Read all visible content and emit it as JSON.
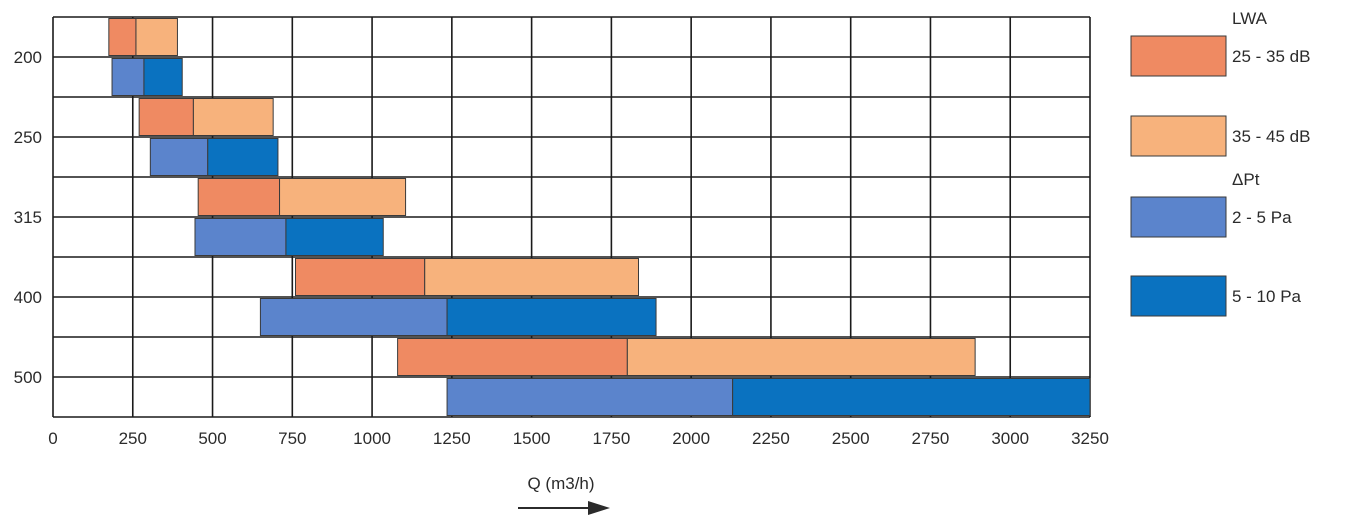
{
  "chart_data": {
    "type": "bar",
    "orientation": "horizontal-range",
    "xlabel": "Q (m3/h)",
    "xlim": [
      0,
      3250
    ],
    "x_ticks": [
      0,
      250,
      500,
      750,
      1000,
      1250,
      1500,
      1750,
      2000,
      2250,
      2500,
      2750,
      3000,
      3250
    ],
    "categories": [
      "200",
      "250",
      "315",
      "400",
      "500"
    ],
    "legend": {
      "placement": "right",
      "groups": [
        {
          "title": "LWA",
          "entries": [
            {
              "label": "25 - 35 dB",
              "color": "#ef8a62"
            },
            {
              "label": "35 - 45 dB",
              "color": "#f7b27c"
            }
          ]
        },
        {
          "title": "ΔPt",
          "entries": [
            {
              "label": "2 - 5 Pa",
              "color": "#5b84cc"
            },
            {
              "label": "5 - 10 Pa",
              "color": "#0a72c0"
            }
          ]
        }
      ]
    },
    "series": [
      {
        "name": "25 - 35 dB",
        "group": "LWA",
        "color": "#ef8a62",
        "ranges": [
          [
            175,
            260
          ],
          [
            270,
            440
          ],
          [
            455,
            710
          ],
          [
            760,
            1165
          ],
          [
            1080,
            1800
          ]
        ]
      },
      {
        "name": "35 - 45 dB",
        "group": "LWA",
        "color": "#f7b27c",
        "ranges": [
          [
            260,
            390
          ],
          [
            440,
            690
          ],
          [
            710,
            1105
          ],
          [
            1165,
            1835
          ],
          [
            1800,
            2890
          ]
        ]
      },
      {
        "name": "2 - 5 Pa",
        "group": "ΔPt",
        "color": "#5b84cc",
        "ranges": [
          [
            185,
            285
          ],
          [
            305,
            485
          ],
          [
            445,
            730
          ],
          [
            650,
            1235
          ],
          [
            1235,
            2130
          ]
        ]
      },
      {
        "name": "5 - 10 Pa",
        "group": "ΔPt",
        "color": "#0a72c0",
        "ranges": [
          [
            285,
            405
          ],
          [
            485,
            705
          ],
          [
            730,
            1035
          ],
          [
            1235,
            1890
          ],
          [
            2130,
            3250
          ]
        ]
      }
    ],
    "grid": true
  }
}
